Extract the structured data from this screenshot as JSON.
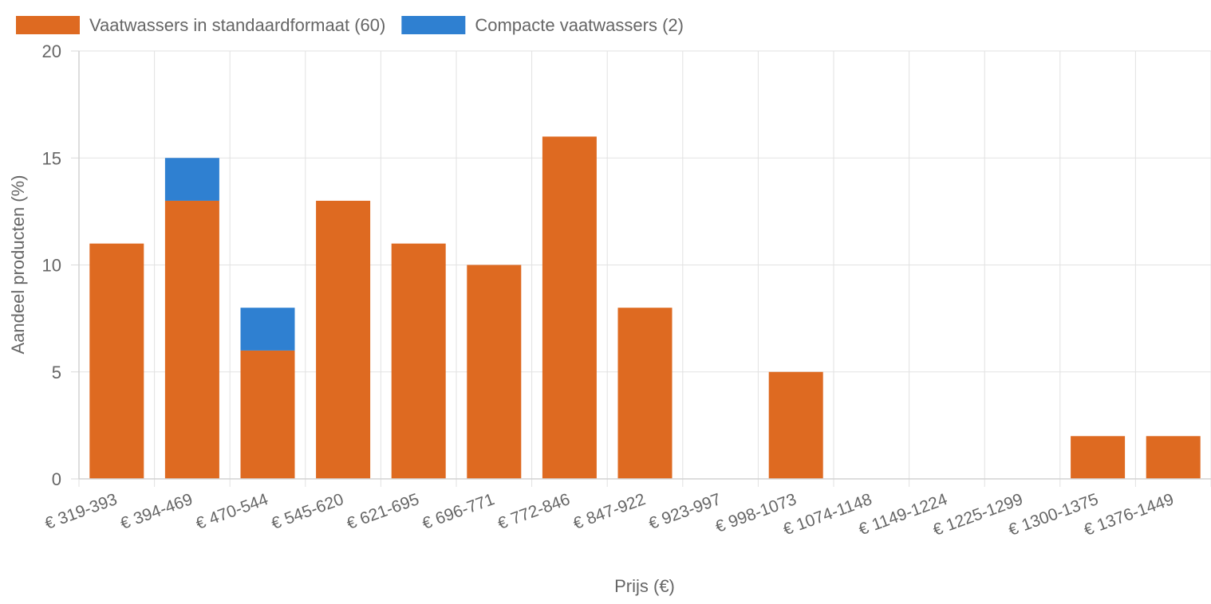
{
  "chart_data": {
    "type": "bar",
    "stacked": true,
    "categories": [
      "€ 319-393",
      "€ 394-469",
      "€ 470-544",
      "€ 545-620",
      "€ 621-695",
      "€ 696-771",
      "€ 772-846",
      "€ 847-922",
      "€ 923-997",
      "€ 998-1073",
      "€ 1074-1148",
      "€ 1149-1224",
      "€ 1225-1299",
      "€ 1300-1375",
      "€ 1376-1449"
    ],
    "series": [
      {
        "name": "Vaatwassers in standaardformaat (60)",
        "color": "#de6a21",
        "values": [
          11,
          13,
          6,
          13,
          11,
          10,
          16,
          8,
          0,
          5,
          0,
          0,
          0,
          2,
          2
        ]
      },
      {
        "name": "Compacte vaatwassers (2)",
        "color": "#2f80d1",
        "values": [
          0,
          2,
          2,
          0,
          0,
          0,
          0,
          0,
          0,
          0,
          0,
          0,
          0,
          0,
          0
        ]
      }
    ],
    "xlabel": "Prijs (€)",
    "ylabel": "Aandeel producten (%)",
    "ylim": [
      0,
      20
    ],
    "yticks": [
      "0",
      "5",
      "10",
      "15",
      "20"
    ],
    "grid": true,
    "legend_position": "top-left"
  }
}
